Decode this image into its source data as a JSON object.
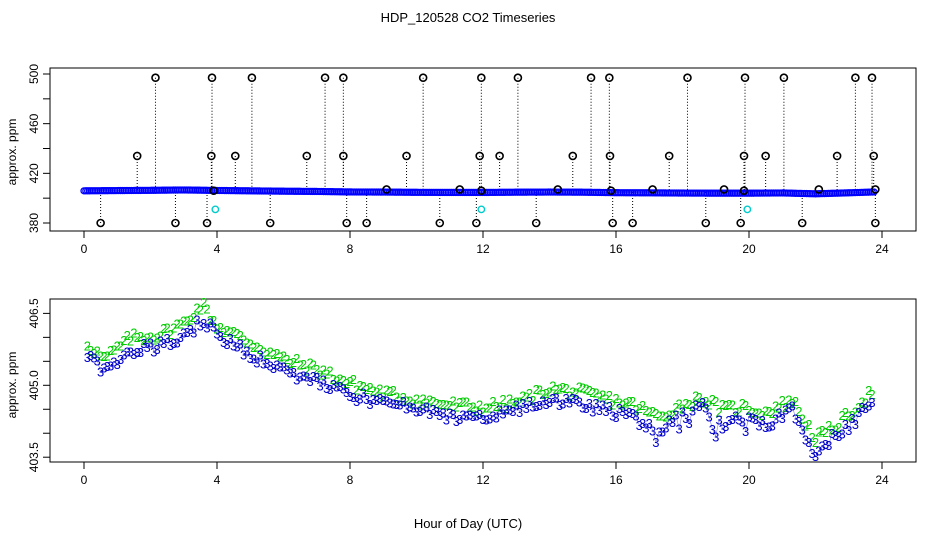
{
  "title": "HDP_120528  CO2 Timeseries",
  "xlabel": "Hour of Day (UTC)",
  "colors": {
    "level1": "#0000ff",
    "flagged": "#00cccc",
    "outlier": "#000000",
    "series2": "#00cc00",
    "series3": "#0000cc",
    "cyan": "#00cccc"
  },
  "chart_data": [
    {
      "type": "scatter",
      "title": "HDP_120528  CO2 Timeseries",
      "xlabel": "",
      "ylabel": "approx. ppm",
      "xlim": [
        0,
        24
      ],
      "ylim": [
        380,
        500
      ],
      "xticks": [
        "0",
        "4",
        "8",
        "12",
        "16",
        "20",
        "24"
      ],
      "yticks": [
        "380",
        "420",
        "460",
        "500"
      ],
      "series": [
        {
          "marker": "open-circle",
          "color": "#0000ff",
          "note": "dense near-continuous trace",
          "x_start": 0.0,
          "x_end": 23.8,
          "values_hourly": [
            405.9,
            406.1,
            406.3,
            406.6,
            406.2,
            405.9,
            405.6,
            405.4,
            405.0,
            404.9,
            404.7,
            404.6,
            404.6,
            404.8,
            404.9,
            404.8,
            404.4,
            404.3,
            404.1,
            404.0,
            404.0,
            404.2,
            403.5,
            404.3,
            405.2
          ]
        },
        {
          "marker": "open-circle",
          "color": "#000000",
          "points": [
            [
              0.5,
              380
            ],
            [
              2.15,
              497
            ],
            [
              1.6,
              434
            ],
            [
              2.75,
              380
            ],
            [
              3.7,
              380
            ],
            [
              3.85,
              497
            ],
            [
              3.83,
              434
            ],
            [
              4.55,
              434
            ],
            [
              5.05,
              497
            ],
            [
              5.6,
              380
            ],
            [
              6.7,
              434
            ],
            [
              7.25,
              497
            ],
            [
              7.8,
              497
            ],
            [
              7.8,
              434
            ],
            [
              7.9,
              380
            ],
            [
              8.5,
              380
            ],
            [
              9.1,
              407
            ],
            [
              9.7,
              434
            ],
            [
              10.2,
              497
            ],
            [
              10.7,
              380
            ],
            [
              11.3,
              407
            ],
            [
              11.8,
              380
            ],
            [
              11.9,
              434
            ],
            [
              11.95,
              497
            ],
            [
              12.5,
              434
            ],
            [
              13.05,
              497
            ],
            [
              13.6,
              380
            ],
            [
              14.25,
              407
            ],
            [
              14.7,
              434
            ],
            [
              15.25,
              497
            ],
            [
              15.8,
              497
            ],
            [
              15.82,
              434
            ],
            [
              15.9,
              380
            ],
            [
              16.5,
              380
            ],
            [
              17.1,
              407
            ],
            [
              17.6,
              434
            ],
            [
              18.15,
              497
            ],
            [
              18.7,
              380
            ],
            [
              19.25,
              407
            ],
            [
              19.75,
              380
            ],
            [
              19.85,
              434
            ],
            [
              19.88,
              497
            ],
            [
              20.5,
              434
            ],
            [
              21.05,
              497
            ],
            [
              21.6,
              380
            ],
            [
              22.1,
              407
            ],
            [
              22.65,
              434
            ],
            [
              23.2,
              497
            ],
            [
              23.7,
              497
            ],
            [
              23.75,
              434
            ],
            [
              23.8,
              380
            ],
            [
              23.8,
              407
            ],
            [
              3.9,
              406
            ],
            [
              11.95,
              406
            ],
            [
              15.85,
              406
            ],
            [
              19.85,
              406
            ]
          ]
        },
        {
          "marker": "open-circle",
          "color": "#00cccc",
          "points": [
            [
              3.95,
              391
            ],
            [
              11.95,
              391
            ],
            [
              19.95,
              391
            ]
          ]
        }
      ]
    },
    {
      "type": "scatter",
      "title": "",
      "xlabel": "Hour of Day (UTC)",
      "ylabel": "approx. ppm",
      "xlim": [
        0,
        24
      ],
      "ylim": [
        403.4,
        406.8
      ],
      "xticks": [
        "0",
        "4",
        "8",
        "12",
        "16",
        "20",
        "24"
      ],
      "yticks": [
        "403.5",
        "405.0",
        "406.5"
      ],
      "series": [
        {
          "marker": "digit",
          "label": "2",
          "color": "#00cc00",
          "x_start": 0.1,
          "x_end": 23.8,
          "anchors": [
            [
              0.0,
              405.95
            ],
            [
              0.6,
              405.55
            ],
            [
              1.4,
              406.0
            ],
            [
              2.2,
              406.05
            ],
            [
              3.0,
              406.3
            ],
            [
              3.55,
              406.7
            ],
            [
              4.0,
              406.25
            ],
            [
              5.0,
              405.9
            ],
            [
              6.0,
              405.55
            ],
            [
              7.0,
              405.35
            ],
            [
              8.0,
              405.05
            ],
            [
              9.0,
              404.85
            ],
            [
              10.0,
              404.7
            ],
            [
              11.0,
              404.6
            ],
            [
              12.0,
              404.55
            ],
            [
              13.0,
              404.65
            ],
            [
              14.0,
              404.95
            ],
            [
              15.0,
              404.85
            ],
            [
              15.9,
              404.7
            ],
            [
              16.5,
              404.6
            ],
            [
              17.3,
              404.35
            ],
            [
              18.0,
              404.6
            ],
            [
              18.6,
              404.75
            ],
            [
              19.2,
              404.5
            ],
            [
              19.8,
              404.55
            ],
            [
              20.5,
              404.45
            ],
            [
              21.3,
              404.7
            ],
            [
              22.0,
              403.9
            ],
            [
              22.5,
              404.1
            ],
            [
              23.0,
              404.4
            ],
            [
              23.8,
              404.95
            ]
          ]
        },
        {
          "marker": "digit",
          "label": "3",
          "color": "#0000cc",
          "x_start": 0.1,
          "x_end": 23.8,
          "anchors": [
            [
              0.0,
              405.75
            ],
            [
              0.6,
              405.3
            ],
            [
              1.4,
              405.75
            ],
            [
              2.2,
              405.8
            ],
            [
              3.0,
              406.05
            ],
            [
              3.55,
              406.35
            ],
            [
              4.0,
              406.1
            ],
            [
              5.0,
              405.65
            ],
            [
              6.0,
              405.3
            ],
            [
              7.0,
              405.1
            ],
            [
              8.0,
              404.8
            ],
            [
              9.0,
              404.65
            ],
            [
              10.0,
              404.5
            ],
            [
              11.0,
              404.35
            ],
            [
              12.0,
              404.35
            ],
            [
              13.0,
              404.5
            ],
            [
              14.0,
              404.7
            ],
            [
              15.0,
              404.6
            ],
            [
              15.9,
              404.45
            ],
            [
              16.5,
              404.35
            ],
            [
              17.3,
              404.05
            ],
            [
              18.0,
              404.4
            ],
            [
              18.6,
              404.55
            ],
            [
              19.2,
              404.2
            ],
            [
              19.8,
              404.3
            ],
            [
              20.5,
              404.15
            ],
            [
              21.3,
              404.55
            ],
            [
              22.0,
              403.55
            ],
            [
              22.5,
              403.9
            ],
            [
              23.0,
              404.15
            ],
            [
              23.8,
              404.75
            ]
          ]
        }
      ]
    }
  ]
}
